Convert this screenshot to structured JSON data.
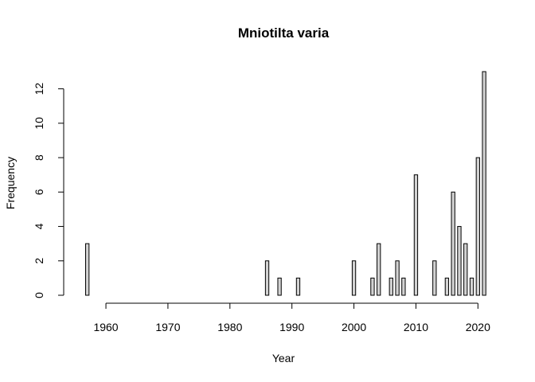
{
  "chart_data": {
    "type": "bar",
    "title": "Mniotilta varia",
    "xlabel": "Year",
    "ylabel": "Frequency",
    "xlim": [
      1955.5,
      2021.5
    ],
    "ylim": [
      0,
      13
    ],
    "x_ticks": [
      1960,
      1970,
      1980,
      1990,
      2000,
      2010,
      2020
    ],
    "y_ticks": [
      0,
      2,
      4,
      6,
      8,
      10,
      12
    ],
    "grid": false,
    "bar_fill": "#d3d3d3",
    "bar_stroke": "#000000",
    "series": [
      {
        "x": [
          1957,
          1958,
          1959,
          1960,
          1961,
          1962,
          1963,
          1964,
          1965,
          1966,
          1967,
          1968,
          1969,
          1970,
          1971,
          1972,
          1973,
          1974,
          1975,
          1976,
          1977,
          1978,
          1979,
          1980,
          1981,
          1982,
          1983,
          1984,
          1985,
          1986,
          1987,
          1988,
          1989,
          1990,
          1991,
          1992,
          1993,
          1994,
          1995,
          1996,
          1997,
          1998,
          1999,
          2000,
          2001,
          2002,
          2003,
          2004,
          2005,
          2006,
          2007,
          2008,
          2009,
          2010,
          2011,
          2012,
          2013,
          2014,
          2015,
          2016,
          2017,
          2018,
          2019,
          2020,
          2021
        ],
        "values": [
          3,
          0,
          0,
          0,
          0,
          0,
          0,
          0,
          0,
          0,
          0,
          0,
          0,
          0,
          0,
          0,
          0,
          0,
          0,
          0,
          0,
          0,
          0,
          0,
          0,
          0,
          0,
          0,
          0,
          2,
          0,
          1,
          0,
          0,
          1,
          0,
          0,
          0,
          0,
          0,
          0,
          0,
          0,
          2,
          0,
          0,
          1,
          3,
          0,
          1,
          2,
          1,
          0,
          7,
          0,
          0,
          2,
          0,
          1,
          6,
          4,
          3,
          1,
          8,
          13
        ]
      }
    ]
  }
}
